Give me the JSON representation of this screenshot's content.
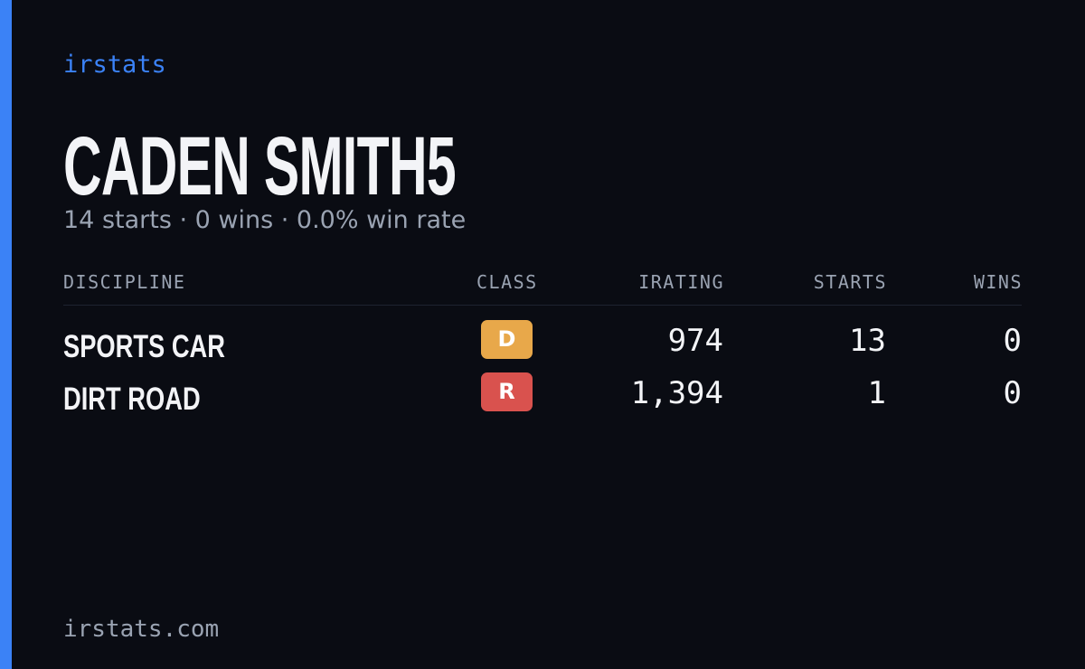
{
  "brand": "irstats",
  "title": "CADEN SMITH5",
  "subtitle": "14 starts · 0 wins · 0.0% win rate",
  "table": {
    "headers": [
      "DISCIPLINE",
      "CLASS",
      "IRATING",
      "STARTS",
      "WINS"
    ],
    "rows": [
      [
        "SPORTS CAR",
        "D",
        "974",
        "13",
        "0"
      ],
      [
        "DIRT ROAD",
        "R",
        "1,394",
        "1",
        "0"
      ]
    ]
  },
  "footer": "irstats.com"
}
